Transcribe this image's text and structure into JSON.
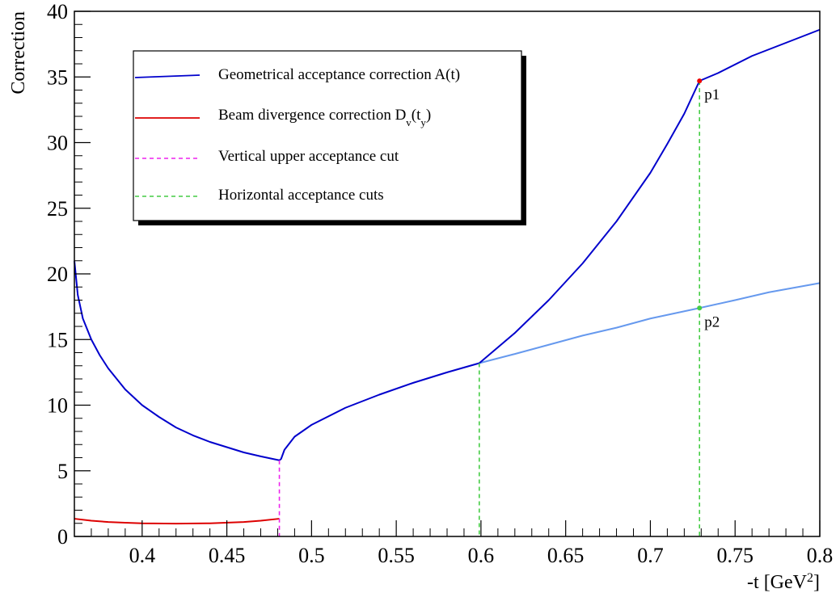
{
  "chart_data": {
    "type": "line",
    "title": "",
    "xlabel": "-t [GeV",
    "xlabel_sup": "2",
    "xlabel_close": "]",
    "ylabel": "Correction",
    "xlim": [
      0.36,
      0.8
    ],
    "ylim": [
      0,
      40
    ],
    "x_ticks": [
      {
        "value": 0.4,
        "label": "0.4"
      },
      {
        "value": 0.45,
        "label": "0.45"
      },
      {
        "value": 0.5,
        "label": "0.5"
      },
      {
        "value": 0.55,
        "label": "0.55"
      },
      {
        "value": 0.6,
        "label": "0.6"
      },
      {
        "value": 0.65,
        "label": "0.65"
      },
      {
        "value": 0.7,
        "label": "0.7"
      },
      {
        "value": 0.75,
        "label": "0.75"
      },
      {
        "value": 0.8,
        "label": "0.8"
      }
    ],
    "y_ticks": [
      {
        "value": 0,
        "label": "0"
      },
      {
        "value": 5,
        "label": "5"
      },
      {
        "value": 10,
        "label": "10"
      },
      {
        "value": 15,
        "label": "15"
      },
      {
        "value": 20,
        "label": "20"
      },
      {
        "value": 25,
        "label": "25"
      },
      {
        "value": 30,
        "label": "30"
      },
      {
        "value": 35,
        "label": "35"
      },
      {
        "value": 40,
        "label": "40"
      }
    ],
    "grid": false,
    "legend_position": "top-left",
    "series": [
      {
        "name": "Geometrical acceptance correction A(t)",
        "color": "#0000cc",
        "style": "solid",
        "points": [
          [
            0.36,
            21.0
          ],
          [
            0.362,
            18.4
          ],
          [
            0.365,
            16.6
          ],
          [
            0.37,
            15.0
          ],
          [
            0.375,
            13.8
          ],
          [
            0.38,
            12.8
          ],
          [
            0.39,
            11.2
          ],
          [
            0.4,
            10.0
          ],
          [
            0.41,
            9.1
          ],
          [
            0.42,
            8.3
          ],
          [
            0.43,
            7.7
          ],
          [
            0.44,
            7.2
          ],
          [
            0.45,
            6.8
          ],
          [
            0.46,
            6.4
          ],
          [
            0.47,
            6.1
          ],
          [
            0.481,
            5.8
          ],
          [
            0.482,
            5.9
          ],
          [
            0.484,
            6.6
          ],
          [
            0.487,
            7.1
          ],
          [
            0.49,
            7.6
          ],
          [
            0.5,
            8.5
          ],
          [
            0.52,
            9.8
          ],
          [
            0.54,
            10.8
          ],
          [
            0.56,
            11.7
          ],
          [
            0.58,
            12.5
          ],
          [
            0.599,
            13.2
          ],
          [
            0.62,
            15.5
          ],
          [
            0.64,
            18.0
          ],
          [
            0.66,
            20.8
          ],
          [
            0.68,
            24.0
          ],
          [
            0.7,
            27.7
          ],
          [
            0.71,
            29.9
          ],
          [
            0.72,
            32.2
          ],
          [
            0.729,
            34.7
          ],
          [
            0.74,
            35.3
          ],
          [
            0.76,
            36.6
          ],
          [
            0.78,
            37.6
          ],
          [
            0.8,
            38.6
          ]
        ]
      },
      {
        "name": "Beam divergence correction D",
        "name_sub": "v",
        "name_mid": "(t",
        "name_sub2": "y",
        "name_end": ")",
        "color": "#dd0000",
        "style": "solid",
        "points": [
          [
            0.36,
            1.35
          ],
          [
            0.37,
            1.2
          ],
          [
            0.38,
            1.1
          ],
          [
            0.39,
            1.05
          ],
          [
            0.4,
            1.0
          ],
          [
            0.42,
            0.98
          ],
          [
            0.44,
            1.0
          ],
          [
            0.46,
            1.1
          ],
          [
            0.47,
            1.2
          ],
          [
            0.481,
            1.35
          ]
        ]
      },
      {
        "name": "",
        "color": "#6699ee",
        "style": "solid",
        "points": [
          [
            0.599,
            13.2
          ],
          [
            0.62,
            13.9
          ],
          [
            0.64,
            14.6
          ],
          [
            0.66,
            15.3
          ],
          [
            0.68,
            15.9
          ],
          [
            0.7,
            16.6
          ],
          [
            0.729,
            17.4
          ],
          [
            0.75,
            18.0
          ],
          [
            0.77,
            18.6
          ],
          [
            0.8,
            19.3
          ]
        ]
      }
    ],
    "cut_lines": [
      {
        "name": "Vertical upper acceptance cut",
        "x": 0.481,
        "y_top": 5.8,
        "color": "#ee22ee"
      },
      {
        "name": "Horizontal acceptance cuts",
        "x": 0.599,
        "y_top": 13.2,
        "color": "#44cc44"
      },
      {
        "name": "",
        "x": 0.729,
        "y_top": 34.7,
        "color": "#44cc44"
      }
    ],
    "annotations": [
      {
        "label": "p1",
        "x": 0.729,
        "y": 34.7,
        "color": "#ee0000"
      },
      {
        "label": "p2",
        "x": 0.729,
        "y": 17.4,
        "color": "#44cc44"
      }
    ]
  }
}
